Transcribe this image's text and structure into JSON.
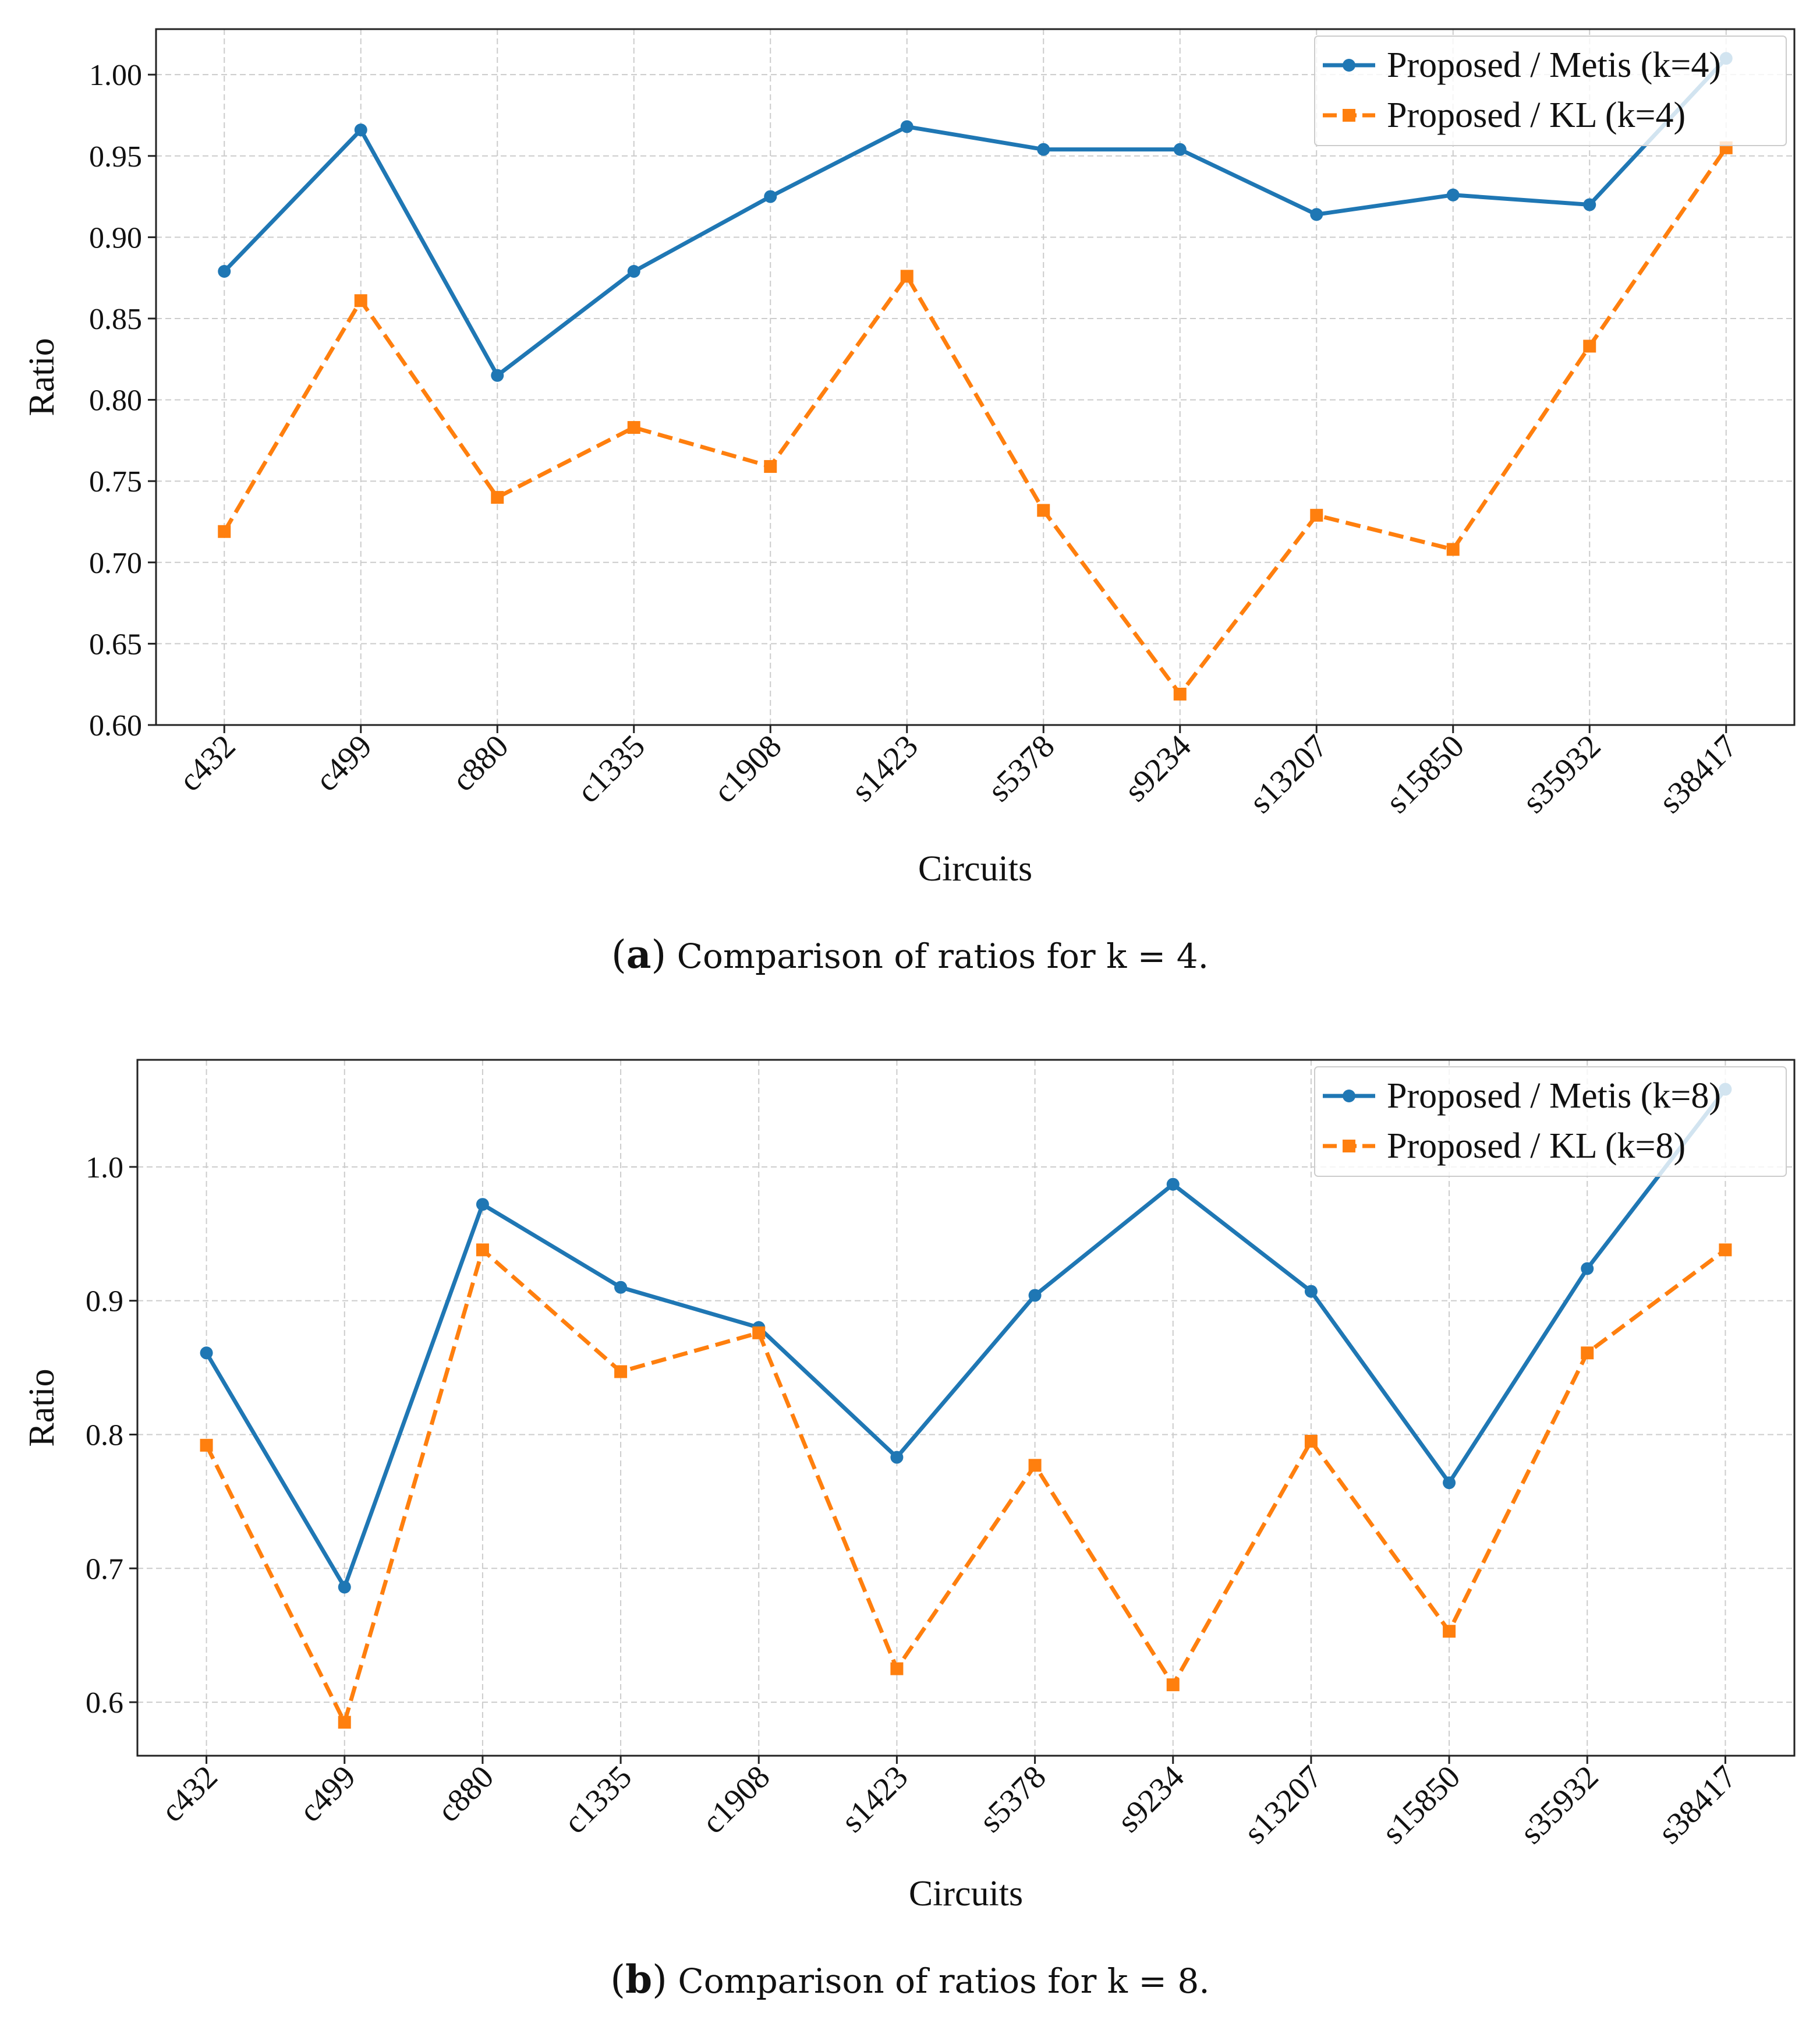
{
  "chart_data": [
    {
      "type": "line",
      "id": "a",
      "xlabel": "Circuits",
      "ylabel": "Ratio",
      "categories": [
        "c432",
        "c499",
        "c880",
        "c1335",
        "c1908",
        "s1423",
        "s5378",
        "s9234",
        "s13207",
        "s15850",
        "s35932",
        "s38417"
      ],
      "ylim": [
        0.6,
        1.028
      ],
      "yticks": [
        0.6,
        0.65,
        0.7,
        0.75,
        0.8,
        0.85,
        0.9,
        0.95,
        1.0
      ],
      "ytick_labels": [
        "0.60",
        "0.65",
        "0.70",
        "0.75",
        "0.80",
        "0.85",
        "0.90",
        "0.95",
        "1.00"
      ],
      "grid": true,
      "legend_position": "top-right",
      "series": [
        {
          "name": "Proposed / Metis (k=4)",
          "color": "#1f77b4",
          "marker": "circle",
          "linestyle": "solid",
          "values": [
            0.879,
            0.966,
            0.815,
            0.879,
            0.925,
            0.968,
            0.954,
            0.954,
            0.914,
            0.926,
            0.92,
            1.01
          ]
        },
        {
          "name": "Proposed / KL (k=4)",
          "color": "#ff7f0e",
          "marker": "square",
          "linestyle": "dashed",
          "values": [
            0.719,
            0.861,
            0.74,
            0.783,
            0.759,
            0.876,
            0.732,
            0.619,
            0.729,
            0.708,
            0.833,
            0.955
          ]
        }
      ],
      "caption_tag": "a",
      "caption_text": "Comparison of ratios for k = 4."
    },
    {
      "type": "line",
      "id": "b",
      "xlabel": "Circuits",
      "ylabel": "Ratio",
      "categories": [
        "c432",
        "c499",
        "c880",
        "c1335",
        "c1908",
        "s1423",
        "s5378",
        "s9234",
        "s13207",
        "s15850",
        "s35932",
        "s38417"
      ],
      "ylim": [
        0.56,
        1.08
      ],
      "yticks": [
        0.6,
        0.7,
        0.8,
        0.9,
        1.0
      ],
      "ytick_labels": [
        "0.6",
        "0.7",
        "0.8",
        "0.9",
        "1.0"
      ],
      "grid": true,
      "legend_position": "top-right",
      "series": [
        {
          "name": "Proposed / Metis (k=8)",
          "color": "#1f77b4",
          "marker": "circle",
          "linestyle": "solid",
          "values": [
            0.861,
            0.686,
            0.972,
            0.91,
            0.88,
            0.783,
            0.904,
            0.987,
            0.907,
            0.764,
            0.924,
            1.058
          ]
        },
        {
          "name": "Proposed / KL (k=8)",
          "color": "#ff7f0e",
          "marker": "square",
          "linestyle": "dashed",
          "values": [
            0.792,
            0.585,
            0.938,
            0.847,
            0.876,
            0.625,
            0.777,
            0.613,
            0.795,
            0.653,
            0.861,
            0.938
          ]
        }
      ],
      "caption_tag": "b",
      "caption_text": "Comparison of ratios for k = 8."
    }
  ]
}
